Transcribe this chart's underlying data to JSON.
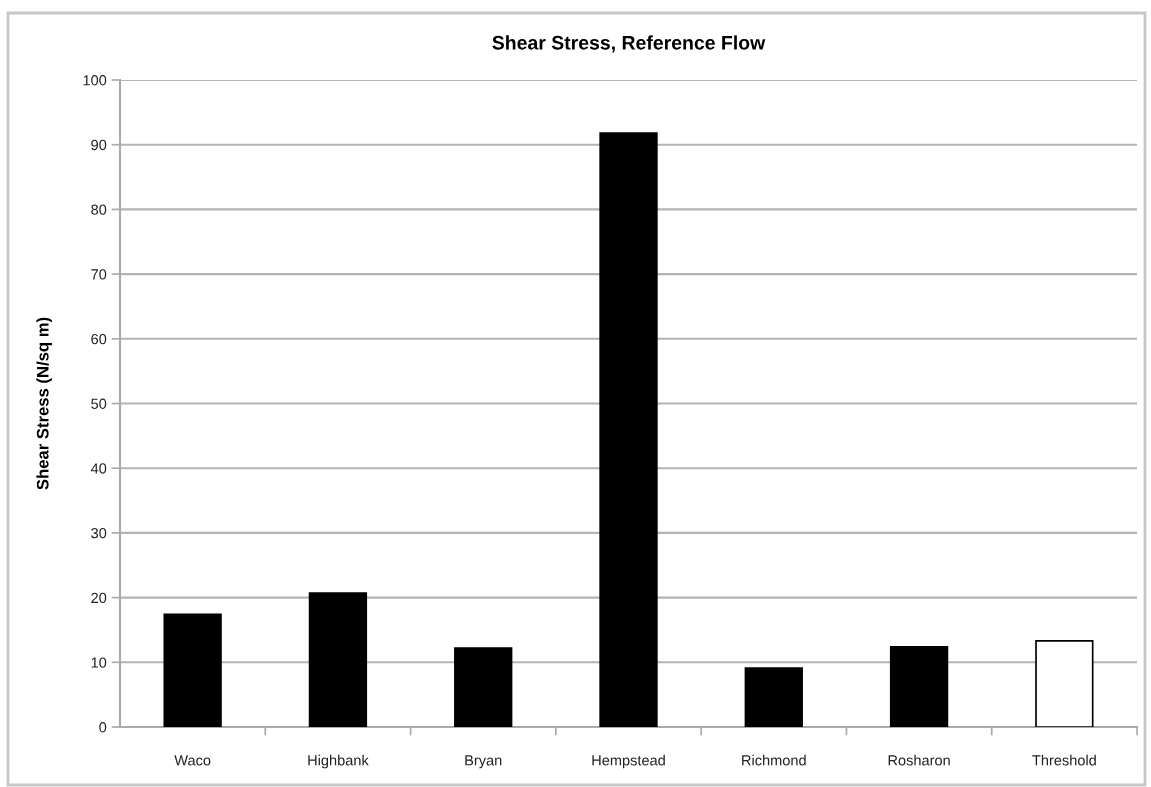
{
  "chart_data": {
    "type": "bar",
    "title": "Shear Stress, Reference Flow",
    "ylabel": "Shear Stress (N/sq m)",
    "categories": [
      "Waco",
      "Highbank",
      "Bryan",
      "Hempstead",
      "Richmond",
      "Rosharon",
      "Threshold"
    ],
    "values": [
      17.4,
      20.7,
      12.2,
      91.8,
      9.1,
      12.4,
      13.3
    ],
    "colors": [
      "#000000",
      "#000000",
      "#000000",
      "#000000",
      "#000000",
      "#000000",
      "#ffffff"
    ],
    "ylim": [
      0,
      100
    ],
    "yticks": [
      0,
      10,
      20,
      30,
      40,
      50,
      60,
      70,
      80,
      90,
      100
    ],
    "grid": "y"
  }
}
